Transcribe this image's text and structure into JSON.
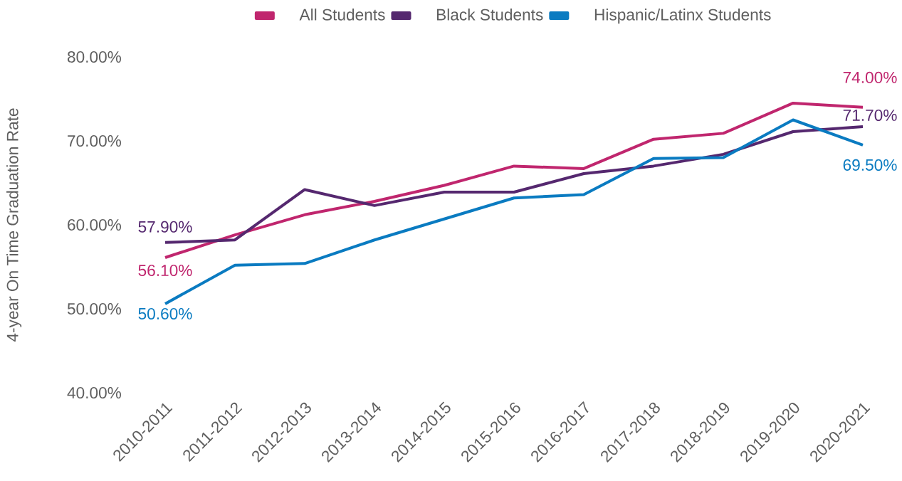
{
  "chart_data": {
    "type": "line",
    "ylabel": "4-year On Time Graduation Rate",
    "categories": [
      "2010-2011",
      "2011-2012",
      "2012-2013",
      "2013-2014",
      "2014-2015",
      "2015-2016",
      "2016-2017",
      "2017-2018",
      "2018-2019",
      "2019-2020",
      "2020-2021"
    ],
    "series": [
      {
        "name": "All Students",
        "color": "#c0266e",
        "values": [
          56.1,
          58.8,
          61.2,
          62.8,
          64.7,
          67.0,
          66.7,
          70.2,
          70.9,
          74.5,
          74.0
        ],
        "value_labels": [
          "56.10%",
          null,
          null,
          null,
          null,
          null,
          null,
          null,
          null,
          null,
          "74.00%"
        ]
      },
      {
        "name": "Black Students",
        "color": "#55286f",
        "values": [
          57.9,
          58.2,
          64.2,
          62.3,
          63.9,
          63.9,
          66.1,
          67.0,
          68.4,
          71.1,
          71.7
        ],
        "value_labels": [
          "57.90%",
          null,
          null,
          null,
          null,
          null,
          null,
          null,
          null,
          null,
          "71.70%"
        ]
      },
      {
        "name": "Hispanic/Latinx Students",
        "color": "#0a7bc1",
        "values": [
          50.6,
          55.2,
          55.4,
          58.2,
          60.7,
          63.2,
          63.6,
          67.9,
          68.0,
          72.5,
          69.5
        ],
        "value_labels": [
          "50.60%",
          null,
          null,
          null,
          null,
          null,
          null,
          null,
          null,
          null,
          "69.50%"
        ]
      }
    ],
    "ylim": [
      40,
      80
    ],
    "yticks": [
      {
        "value": 40,
        "label": "40.00%"
      },
      {
        "value": 50,
        "label": "50.00%"
      },
      {
        "value": 60,
        "label": "60.00%"
      },
      {
        "value": 70,
        "label": "70.00%"
      },
      {
        "value": 80,
        "label": "80.00%"
      }
    ],
    "legend": "top",
    "grid": false,
    "marker": "none",
    "line_style": "solid"
  }
}
